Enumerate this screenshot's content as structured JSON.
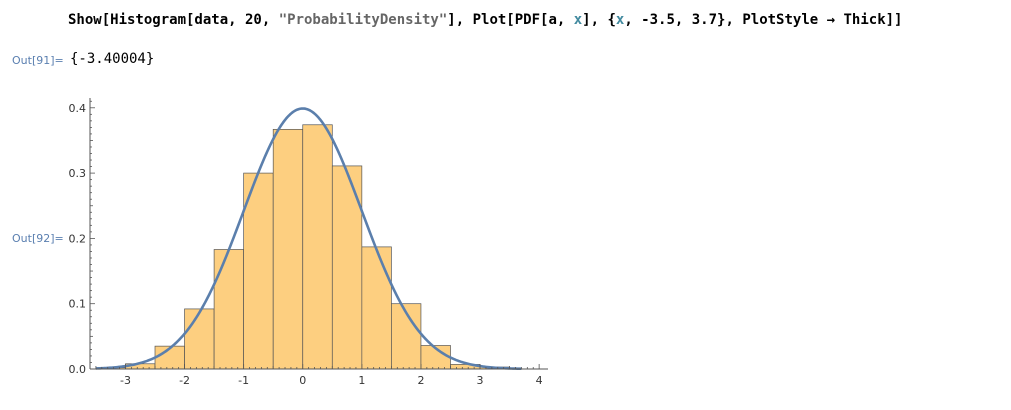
{
  "input": {
    "prefix": "Show[Histogram[data, 20, ",
    "string_literal": "\"ProbabilityDensity\"",
    "mid1": "], Plot[PDF[a, ",
    "var1": "x",
    "mid2": "], {",
    "var2": "x",
    "suffix": ", -3.5, 3.7}, PlotStyle → Thick]]"
  },
  "outputs": [
    {
      "label": "Out[91]=",
      "value": "{-3.40004}"
    },
    {
      "label": "Out[92]="
    }
  ],
  "colors": {
    "bar_fill": "#fdcf80",
    "bar_stroke": "#555555",
    "curve": "#5b7fac",
    "axis": "#555555",
    "out_label": "#5a7fb0",
    "string_token": "#666666",
    "variable_token": "#438ba0"
  },
  "chart_data": {
    "type": "bar",
    "histogram_bin_edges": [
      -3.5,
      -3.0,
      -2.5,
      -2.0,
      -1.5,
      -1.0,
      -0.5,
      0.0,
      0.5,
      1.0,
      1.5,
      2.0,
      2.5,
      3.0,
      3.5
    ],
    "histogram_density": [
      0.002,
      0.008,
      0.035,
      0.092,
      0.183,
      0.3,
      0.367,
      0.374,
      0.311,
      0.187,
      0.1,
      0.036,
      0.007,
      0.003
    ],
    "curve": {
      "function": "normal_pdf",
      "mean": 0,
      "sd": 1,
      "x_range": [
        -3.5,
        3.7
      ]
    },
    "xlim": [
      -3.6,
      4.15
    ],
    "ylim": [
      0,
      0.415
    ],
    "x_ticks": [
      -3,
      -2,
      -1,
      0,
      1,
      2,
      3,
      4
    ],
    "y_ticks": [
      0.0,
      0.1,
      0.2,
      0.3,
      0.4
    ],
    "x_tick_labels": [
      "-3",
      "-2",
      "-1",
      "0",
      "1",
      "2",
      "3",
      "4"
    ],
    "y_tick_labels": [
      "0.0",
      "0.1",
      "0.2",
      "0.3",
      "0.4"
    ],
    "title": "",
    "xlabel": "",
    "ylabel": "",
    "grid": false
  }
}
